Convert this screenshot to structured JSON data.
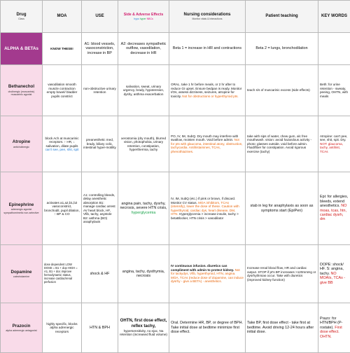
{
  "headers": {
    "drug": "Drug",
    "drug_sub": "Class",
    "moa": "MOA",
    "use": "USE",
    "side_title": "Side & Adverse Effects",
    "side_legend": [
      {
        "text": "hypo",
        "color": "#1f7ad6"
      },
      {
        "text": "hyper",
        "color": "#19a34a"
      },
      {
        "text": "NBCs",
        "color": "#e0007a"
      }
    ],
    "nursing_title": "Nursing considerations",
    "nursing_legend": "Monitor vitals & Interactions",
    "teaching": "Patient teaching",
    "keywords": "KEY WORDS"
  },
  "rows": [
    {
      "drug": "ALPHA & BETAs",
      "class": "",
      "moa": "KNOW THESE!",
      "use": "A1: blood vessels, vasoconstriction, increase in BP",
      "side": "A2: decreases sympathetic outflow, vasodilation, decrease in HR",
      "nursing": "Beta 1 = increase in HR and contractions",
      "teaching": "Beta 2 = lungs, bronchodilation",
      "keywords": ""
    },
    {
      "drug": "Bethanechol",
      "class": "cholinergic (muscarinic) muscarinic agonist",
      "moa": "vasodilation smooth muscle contraction empty bowel/ bladder pupils constrict",
      "use": "non-obstructive urinary retention",
      "side": "salivation, sweat, urinary urgency, brady, hypotension, dyshy, asthma exacerbation",
      "nursing": "ORAL. take 1 hr before meals, or 2 hr after to reduce GI upset. Ensure bedpan is ready. Monitor I/Os, assess dizziness, seizures, atropine for toxicity.",
      "nursing_warn": "Not for obstructions or hyperthyroid pts.",
      "teaching": "teach s/s of muscarinic excess (side effects)",
      "keywords": "Beth: for urine retention - sweaty, peeing, OHTN, with meals"
    },
    {
      "drug": "Atropine",
      "class": "anticholinergic",
      "moa": "block Ach at muscarinic receptors. ↑ HR, ↓ salivation, dilate pupils",
      "moa_note": "can't see, pee, shit, spit",
      "use": "preanesthetic med, brady, biliary colic, intestinal hyper-motility",
      "side": "xerostomia (dry mouth), blurred vision, photophobia, urinary retention, constipation, hyperthermia, tachy",
      "nursing": "PO, IV, IM, SubQ. Dry mouth may interfere with swallow, moisten mouth. Void before admin.",
      "nursing_warn": "Not for pts with glaucoma, intestinal atony, obstruction, tachycardia. Antihistamines, TCAs, phenothiazines.",
      "teaching": "take with sips of water, chew gum, alc free mouthwash. vision: avoid hazardous activity - photo: glasses outside. void before admin. Fluid/fiber for constipation. Avoid rigorous exercise (tachy)",
      "keywords": "Atropine: can't pee, see, shit, spit. Dry.",
      "keywords_warn": "NOT: glaucoma, tachy, antihist, TCAs"
    },
    {
      "drug": "Epinephrine",
      "class": "adrenergic agonist sympathomimetic non-selective",
      "moa": "activates a1,a2,b1,b2 vasoconstrict, bronchodil, pupil dilation, ↑ BP & CO",
      "use": "A1: controlling bleeds, delay anesthetic absorption B1: manage cardiac arrest AV heart block, HF, Vfib, tachy, asystole B2: asthma (BO) anaphylaxis",
      "side": "angina pain, tachy, dysrhy, necrosis, severe HTN crisis,",
      "side_hyper": "hyperglycemia",
      "nursing": "IV, IM, SubQ (etc.) if pink or brown, if discard. Monitor CV status.",
      "nursing_warn": "MOA inhibitors, TCAs (intensify), lower the dose of these. Caution with hyperthyroid, cardiac dys, heart disease, DM, HTN.",
      "nursing_tail": "Hyperglycemia > increase insulin, tachy > betaBlocker, HTN crisis > vasodilator",
      "teaching": "stab in leg for anaphylaxis as soon as symptoms start (EpiPen)",
      "keywords": "Epi: for allergies, bleeds, extend anesthetics.",
      "keywords_warn": "NO moas, tcas, htn, cardiac dysrh, dm"
    },
    {
      "drug": "Dopamine",
      "class": "catecholamine",
      "moa": "dose dependent LOW DOSE = B1 + dop HIGH = A1, B1 + doc improve hemodynamic status, increase cardiac/renal perfusion",
      "use": "shock & HF",
      "side": "angina, tachy, dysthymia, necrosis",
      "nursing": "IV continuous infusion. diuretics can compliment with admin to protect kidney.",
      "nursing_warn": "Not for tackydys, Vfib, hyperthyroid, HTN, angina. MOA, TCAs (reduce dose of dopamine, can induce dysrhy - give a BETA) - anesthetics.",
      "teaching": "Increase renal blood flow, HR and cardiac output. STOP if pt's BP increases >120mmHg or dysrhythmias occur. Take with diuretics (improved kidney function)",
      "keywords": "DOPE: shock/ HF. S: angina, tachy.",
      "keywords_warn": "NO MOAIs, TCAs - give BB"
    },
    {
      "drug": "Prazocin",
      "class": "alpha adrenergic antagonist",
      "moa": "highly specific, blocks alpha adrenergic receptors",
      "use": "HTN & BPH",
      "side": "OHTN, first dose effect, reflex tachy,",
      "side_tail": "hypersensitivity, no ejac, Na retention (increased fluid volume)",
      "nursing": "Oral. Determine HR, BP, or degree of BPH. Take initial dose at bedtime minimize first dose effect.",
      "teaching": "Take BP, first dose effect - take first at bedtime. Avoid driving 12-24 hours after initial dose.",
      "keywords": "Prazo: for HTN/BPH (P- rostate).",
      "keywords_warn": "First dose effect. OHTN."
    }
  ]
}
